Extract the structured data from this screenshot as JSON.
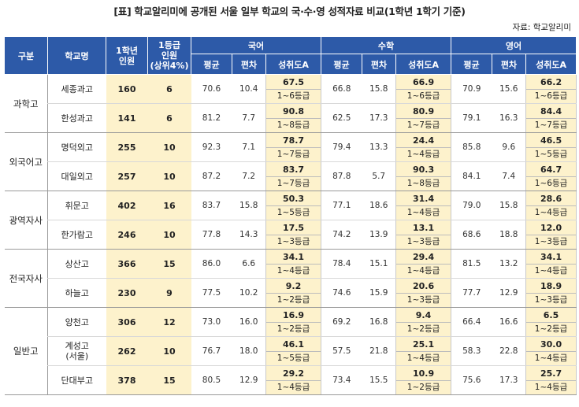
{
  "title": "[표] 학교알리미에 공개된 서울 일부 학교의 국·수·영 성적자료 비교(1학년 1학기 기준)",
  "source": "자료: 학교알리미",
  "headers": {
    "group": "구분",
    "school": "학교명",
    "students_line1": "1학년",
    "students_line2": "인원",
    "top_line1": "1등급",
    "top_line2": "인원",
    "top_line3": "(상위4%)",
    "subjects": [
      "국어",
      "수학",
      "영어"
    ],
    "sub_avg": "평균",
    "sub_sd": "편차",
    "sub_ach": "성취도A"
  },
  "groups": [
    {
      "name": "과학고",
      "schools": [
        {
          "name": "세종과고",
          "students": "160",
          "top": "6",
          "kor": {
            "avg": "70.6",
            "sd": "10.4",
            "pct": "67.5",
            "grade": "1~6등급"
          },
          "math": {
            "avg": "66.8",
            "sd": "15.8",
            "pct": "66.9",
            "grade": "1~6등급"
          },
          "eng": {
            "avg": "70.9",
            "sd": "15.6",
            "pct": "66.2",
            "grade": "1~6등급"
          }
        },
        {
          "name": "한성과고",
          "students": "141",
          "top": "6",
          "kor": {
            "avg": "81.2",
            "sd": "7.7",
            "pct": "90.8",
            "grade": "1~8등급"
          },
          "math": {
            "avg": "62.5",
            "sd": "17.3",
            "pct": "80.9",
            "grade": "1~7등급"
          },
          "eng": {
            "avg": "79.1",
            "sd": "16.3",
            "pct": "84.4",
            "grade": "1~7등급"
          }
        }
      ]
    },
    {
      "name": "외국어고",
      "schools": [
        {
          "name": "명덕외고",
          "students": "255",
          "top": "10",
          "kor": {
            "avg": "92.3",
            "sd": "7.1",
            "pct": "78.7",
            "grade": "1~7등급"
          },
          "math": {
            "avg": "79.4",
            "sd": "13.3",
            "pct": "24.4",
            "grade": "1~4등급"
          },
          "eng": {
            "avg": "85.8",
            "sd": "9.6",
            "pct": "46.5",
            "grade": "1~5등급"
          }
        },
        {
          "name": "대일외고",
          "students": "257",
          "top": "10",
          "kor": {
            "avg": "87.2",
            "sd": "7.2",
            "pct": "83.7",
            "grade": "1~7등급"
          },
          "math": {
            "avg": "87.8",
            "sd": "5.7",
            "pct": "90.3",
            "grade": "1~8등급"
          },
          "eng": {
            "avg": "84.1",
            "sd": "7.4",
            "pct": "64.7",
            "grade": "1~6등급"
          }
        }
      ]
    },
    {
      "name": "광역자사",
      "schools": [
        {
          "name": "휘문고",
          "students": "402",
          "top": "16",
          "kor": {
            "avg": "83.7",
            "sd": "15.8",
            "pct": "50.3",
            "grade": "1~5등급"
          },
          "math": {
            "avg": "77.1",
            "sd": "18.6",
            "pct": "31.4",
            "grade": "1~4등급"
          },
          "eng": {
            "avg": "79.0",
            "sd": "15.8",
            "pct": "28.6",
            "grade": "1~4등급"
          }
        },
        {
          "name": "한가람고",
          "students": "246",
          "top": "10",
          "kor": {
            "avg": "77.8",
            "sd": "14.3",
            "pct": "17.5",
            "grade": "1~3등급"
          },
          "math": {
            "avg": "74.2",
            "sd": "13.9",
            "pct": "13.1",
            "grade": "1~3등급"
          },
          "eng": {
            "avg": "68.6",
            "sd": "18.8",
            "pct": "12.0",
            "grade": "1~3등급"
          }
        }
      ]
    },
    {
      "name": "전국자사",
      "schools": [
        {
          "name": "상산고",
          "students": "366",
          "top": "15",
          "kor": {
            "avg": "86.0",
            "sd": "6.6",
            "pct": "34.1",
            "grade": "1~4등급"
          },
          "math": {
            "avg": "78.4",
            "sd": "15.1",
            "pct": "29.4",
            "grade": "1~4등급"
          },
          "eng": {
            "avg": "81.5",
            "sd": "13.2",
            "pct": "34.1",
            "grade": "1~4등급"
          }
        },
        {
          "name": "하늘고",
          "students": "230",
          "top": "9",
          "kor": {
            "avg": "77.5",
            "sd": "10.2",
            "pct": "9.2",
            "grade": "1~2등급"
          },
          "math": {
            "avg": "74.6",
            "sd": "15.9",
            "pct": "20.6",
            "grade": "1~3등급"
          },
          "eng": {
            "avg": "77.7",
            "sd": "12.9",
            "pct": "18.9",
            "grade": "1~3등급"
          }
        }
      ]
    },
    {
      "name": "일반고",
      "schools": [
        {
          "name": "양천고",
          "students": "306",
          "top": "12",
          "kor": {
            "avg": "73.0",
            "sd": "16.0",
            "pct": "16.9",
            "grade": "1~2등급"
          },
          "math": {
            "avg": "69.2",
            "sd": "16.8",
            "pct": "9.4",
            "grade": "1~2등급"
          },
          "eng": {
            "avg": "66.4",
            "sd": "16.6",
            "pct": "6.5",
            "grade": "1~2등급"
          }
        },
        {
          "name": "계성고",
          "name2": "(서울)",
          "students": "262",
          "top": "10",
          "kor": {
            "avg": "76.7",
            "sd": "18.0",
            "pct": "46.1",
            "grade": "1~5등급"
          },
          "math": {
            "avg": "57.5",
            "sd": "21.8",
            "pct": "25.1",
            "grade": "1~4등급"
          },
          "eng": {
            "avg": "58.3",
            "sd": "22.8",
            "pct": "30.0",
            "grade": "1~4등급"
          }
        },
        {
          "name": "단대부고",
          "students": "378",
          "top": "15",
          "kor": {
            "avg": "80.5",
            "sd": "12.9",
            "pct": "29.2",
            "grade": "1~4등급"
          },
          "math": {
            "avg": "73.4",
            "sd": "15.5",
            "pct": "10.9",
            "grade": "1~2등급"
          },
          "eng": {
            "avg": "75.6",
            "sd": "17.3",
            "pct": "25.7",
            "grade": "1~4등급"
          }
        }
      ]
    }
  ]
}
